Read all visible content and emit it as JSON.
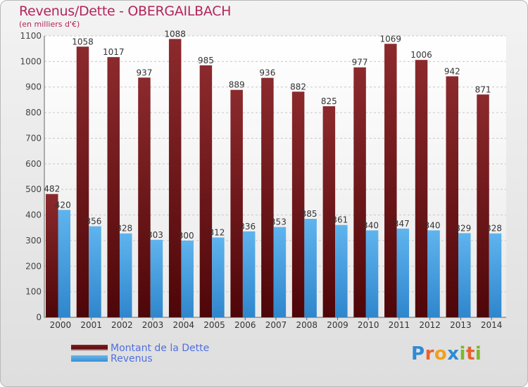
{
  "header": {
    "title": "Revenus/Dette - OBERGAILBACH",
    "subtitle": "(en milliers d'€)"
  },
  "legend": {
    "debt_label": "Montant de la Dette",
    "revenue_label": "Revenus"
  },
  "logo": {
    "text": "Proxiti",
    "letters": [
      {
        "ch": "P",
        "color": "#2e8bd6"
      },
      {
        "ch": "r",
        "color": "#e8622d"
      },
      {
        "ch": "o",
        "color": "#f0a020"
      },
      {
        "ch": "x",
        "color": "#2e8bd6"
      },
      {
        "ch": "i",
        "color": "#7cb829"
      },
      {
        "ch": "t",
        "color": "#e8622d"
      },
      {
        "ch": "i",
        "color": "#7cb829"
      }
    ]
  },
  "colors": {
    "title": "#b3245a",
    "debt": "#6e1417",
    "revenue": "#4aa3e4",
    "legend_text": "#4f6fe0"
  },
  "chart_data": {
    "type": "bar",
    "categories": [
      "2000",
      "2001",
      "2002",
      "2003",
      "2004",
      "2005",
      "2006",
      "2007",
      "2008",
      "2009",
      "2010",
      "2011",
      "2012",
      "2013",
      "2014"
    ],
    "series": [
      {
        "name": "Montant de la Dette",
        "values": [
          482,
          1058,
          1017,
          937,
          1088,
          985,
          889,
          936,
          882,
          825,
          977,
          1069,
          1006,
          942,
          871
        ]
      },
      {
        "name": "Revenus",
        "values": [
          420,
          356,
          328,
          303,
          300,
          312,
          336,
          353,
          385,
          361,
          340,
          347,
          340,
          329,
          328
        ]
      }
    ],
    "ylim": [
      0,
      1100
    ],
    "yticks": [
      0,
      100,
      200,
      300,
      400,
      500,
      600,
      700,
      800,
      900,
      1000,
      1100
    ],
    "grid": true,
    "legend_position": "bottom-left"
  }
}
